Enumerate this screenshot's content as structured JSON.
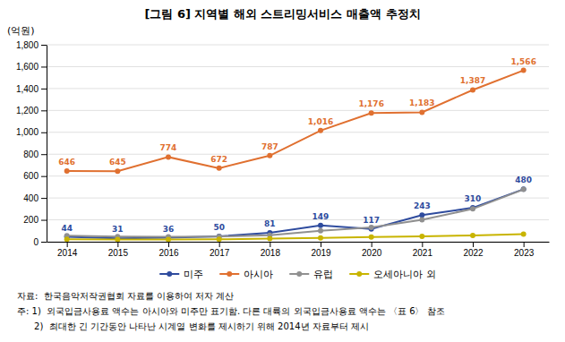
{
  "chart_data": {
    "type": "line",
    "title": "[그림 6] 지역별 해외 스트리밍서비스 매출액 추정치",
    "y_label": "(억원)",
    "x": [
      2014,
      2015,
      2016,
      2017,
      2018,
      2019,
      2020,
      2021,
      2022,
      2023
    ],
    "xlim": [
      2013.6,
      2023.5
    ],
    "xticks": [
      2014,
      2015,
      2016,
      2017,
      2018,
      2019,
      2020,
      2021,
      2022,
      2023
    ],
    "ylim": [
      0,
      1800
    ],
    "yticks": [
      0,
      200,
      400,
      600,
      800,
      {
        "value": 1000,
        "label": "1,000"
      },
      {
        "value": 1200,
        "label": "1,200"
      },
      {
        "value": 1400,
        "label": "1,400"
      },
      {
        "value": 1600,
        "label": "1,600"
      },
      {
        "value": 1800,
        "label": "1,800"
      }
    ],
    "grid": true,
    "legend": "bottom",
    "series": [
      {
        "name": "미주",
        "color": "#2E4B9E",
        "marker": "circle",
        "line_style": "solid",
        "data_labels": true,
        "values": [
          44,
          31,
          36,
          50,
          81,
          149,
          117,
          243,
          310,
          480
        ]
      },
      {
        "name": "아시아",
        "color": "#E07030",
        "marker": "circle",
        "line_style": "solid",
        "data_labels": true,
        "values": [
          646,
          645,
          774,
          672,
          787,
          1016,
          1176,
          1183,
          1387,
          1566
        ],
        "value_labels": [
          "646",
          "645",
          "774",
          "672",
          "787",
          "1,016",
          "1,176",
          "1,183",
          "1,387",
          "1,566"
        ]
      },
      {
        "name": "유럽",
        "color": "#909090",
        "marker": "circle",
        "line_style": "solid",
        "data_labels": false,
        "values": [
          55,
          48,
          45,
          48,
          60,
          100,
          130,
          200,
          300,
          478
        ]
      },
      {
        "name": "오세아니아 외",
        "color": "#C8B400",
        "marker": "circle",
        "line_style": "solid",
        "data_labels": false,
        "values": [
          22,
          20,
          20,
          22,
          28,
          35,
          42,
          50,
          58,
          70
        ]
      }
    ],
    "footnotes": [
      "자료:  한국음악저작권협회 자료를 이용하여 저자 계산",
      "주: 1)  외국입금사용료 액수는 아시아와 미주만 표기함. 다른 대륙의 외국입금사용료 액수는 〈표 6〉 참조",
      "      2)  최대한 긴 기간동안 나타난 시계열 변화를 제시하기 위해 2014년 자료부터 제시"
    ]
  }
}
